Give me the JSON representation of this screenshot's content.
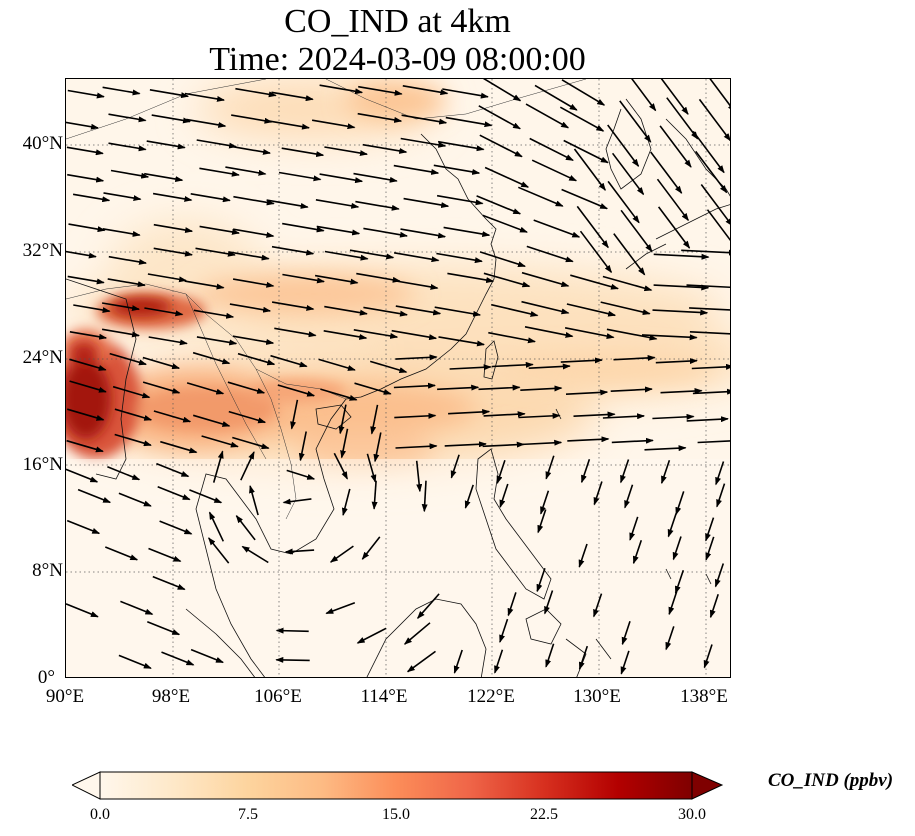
{
  "title_line1": "CO_IND at 4km",
  "title_line2": "Time: 2024-03-09 08:00:00",
  "axes": {
    "lon_range": [
      90,
      140
    ],
    "lat_range": [
      0,
      45
    ],
    "x_ticks": [
      "90°E",
      "98°E",
      "106°E",
      "114°E",
      "122°E",
      "130°E",
      "138°E"
    ],
    "y_ticks": [
      "40°N",
      "32°N",
      "24°N",
      "16°N",
      "8°N",
      "0°"
    ],
    "gridlines": "dotted"
  },
  "colorbar": {
    "label": "CO_IND (ppbv)",
    "range": [
      0,
      30
    ],
    "ticks": [
      "0.0",
      "7.5",
      "15.0",
      "22.5",
      "30.0"
    ],
    "extend": "both",
    "colormap": "OrRd",
    "colors": [
      "#fff7ec",
      "#fee8c8",
      "#fdd49e",
      "#fdbb84",
      "#fc8d59",
      "#ef6548",
      "#d7301f",
      "#b30000",
      "#7f0000"
    ]
  },
  "map": {
    "field": "CO_IND",
    "units": "ppbv",
    "level": "4km",
    "high_regions": [
      "Myanmar-Bangladesh border",
      "Northern Myanmar",
      "Southern China band along 24-28°N"
    ],
    "wind_vectors": "shown"
  }
}
